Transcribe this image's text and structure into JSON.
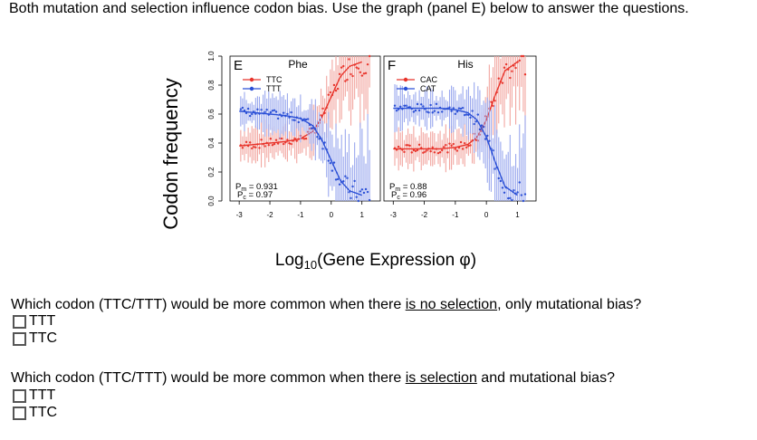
{
  "intro_text": "Both mutation and selection influence codon bias. Use the graph (panel E) below to answer the questions.",
  "questions": [
    {
      "before": "Which codon (TTC/TTT) would be more common when there ",
      "emph": "is no selection",
      "after": ", only mutational bias?",
      "options": [
        "TTT",
        "TTC"
      ]
    },
    {
      "before": "Which codon (TTC/TTT) would be more common when there ",
      "emph": "is selection",
      "after": " and mutational bias?",
      "options": [
        "TTT",
        "TTC"
      ]
    }
  ],
  "chart_data": {
    "type": "line",
    "ylabel": "Codon frequency",
    "xlabel_main": "Log",
    "xlabel_sub": "10",
    "xlabel_rest": "(Gene Expression φ)",
    "ylim": [
      0,
      1
    ],
    "yticks": [
      "0.0",
      "0.2",
      "0.4",
      "0.6",
      "0.8",
      "1.0"
    ],
    "xlim": [
      -3.3,
      1.6
    ],
    "xticks": [
      "-3",
      "-2",
      "-1",
      "0",
      "1"
    ],
    "colors": {
      "red": "#e8332a",
      "blue": "#2a4fd6",
      "red_light": "#f2a6a0",
      "blue_light": "#9aa8ee"
    },
    "panels": [
      {
        "letter": "E",
        "amino_acid": "Phe",
        "series": [
          {
            "name": "TTC",
            "color": "red",
            "x": [
              -3.0,
              -2.5,
              -2.0,
              -1.5,
              -1.0,
              -0.6,
              -0.3,
              0.0,
              0.3,
              0.6,
              1.0
            ],
            "y": [
              0.38,
              0.39,
              0.4,
              0.41,
              0.43,
              0.48,
              0.58,
              0.72,
              0.86,
              0.93,
              0.96
            ]
          },
          {
            "name": "TTT",
            "color": "blue",
            "x": [
              -3.0,
              -2.5,
              -2.0,
              -1.5,
              -1.0,
              -0.6,
              -0.3,
              0.0,
              0.3,
              0.6,
              1.0
            ],
            "y": [
              0.62,
              0.61,
              0.6,
              0.59,
              0.57,
              0.52,
              0.42,
              0.28,
              0.14,
              0.07,
              0.04
            ]
          }
        ],
        "stats": {
          "pm_label": "P",
          "pm_sub": "m",
          "pm_value": " = 0.931",
          "pc_label": "P",
          "pc_sub": "c",
          "pc_value": " = 0.97"
        }
      },
      {
        "letter": "F",
        "amino_acid": "His",
        "series": [
          {
            "name": "CAC",
            "color": "red",
            "x": [
              -3.0,
              -2.5,
              -2.0,
              -1.5,
              -1.0,
              -0.6,
              -0.3,
              0.0,
              0.3,
              0.6,
              1.0
            ],
            "y": [
              0.36,
              0.36,
              0.36,
              0.36,
              0.37,
              0.39,
              0.44,
              0.56,
              0.74,
              0.9,
              0.96
            ]
          },
          {
            "name": "CAT",
            "color": "blue",
            "x": [
              -3.0,
              -2.5,
              -2.0,
              -1.5,
              -1.0,
              -0.6,
              -0.3,
              0.0,
              0.3,
              0.6,
              1.0
            ],
            "y": [
              0.64,
              0.64,
              0.64,
              0.64,
              0.63,
              0.61,
              0.56,
              0.44,
              0.26,
              0.1,
              0.04
            ]
          }
        ],
        "stats": {
          "pm_label": "P",
          "pm_sub": "m",
          "pm_value": " = 0.88",
          "pc_label": "P",
          "pc_sub": "c",
          "pc_value": " = 0.96"
        }
      }
    ]
  }
}
